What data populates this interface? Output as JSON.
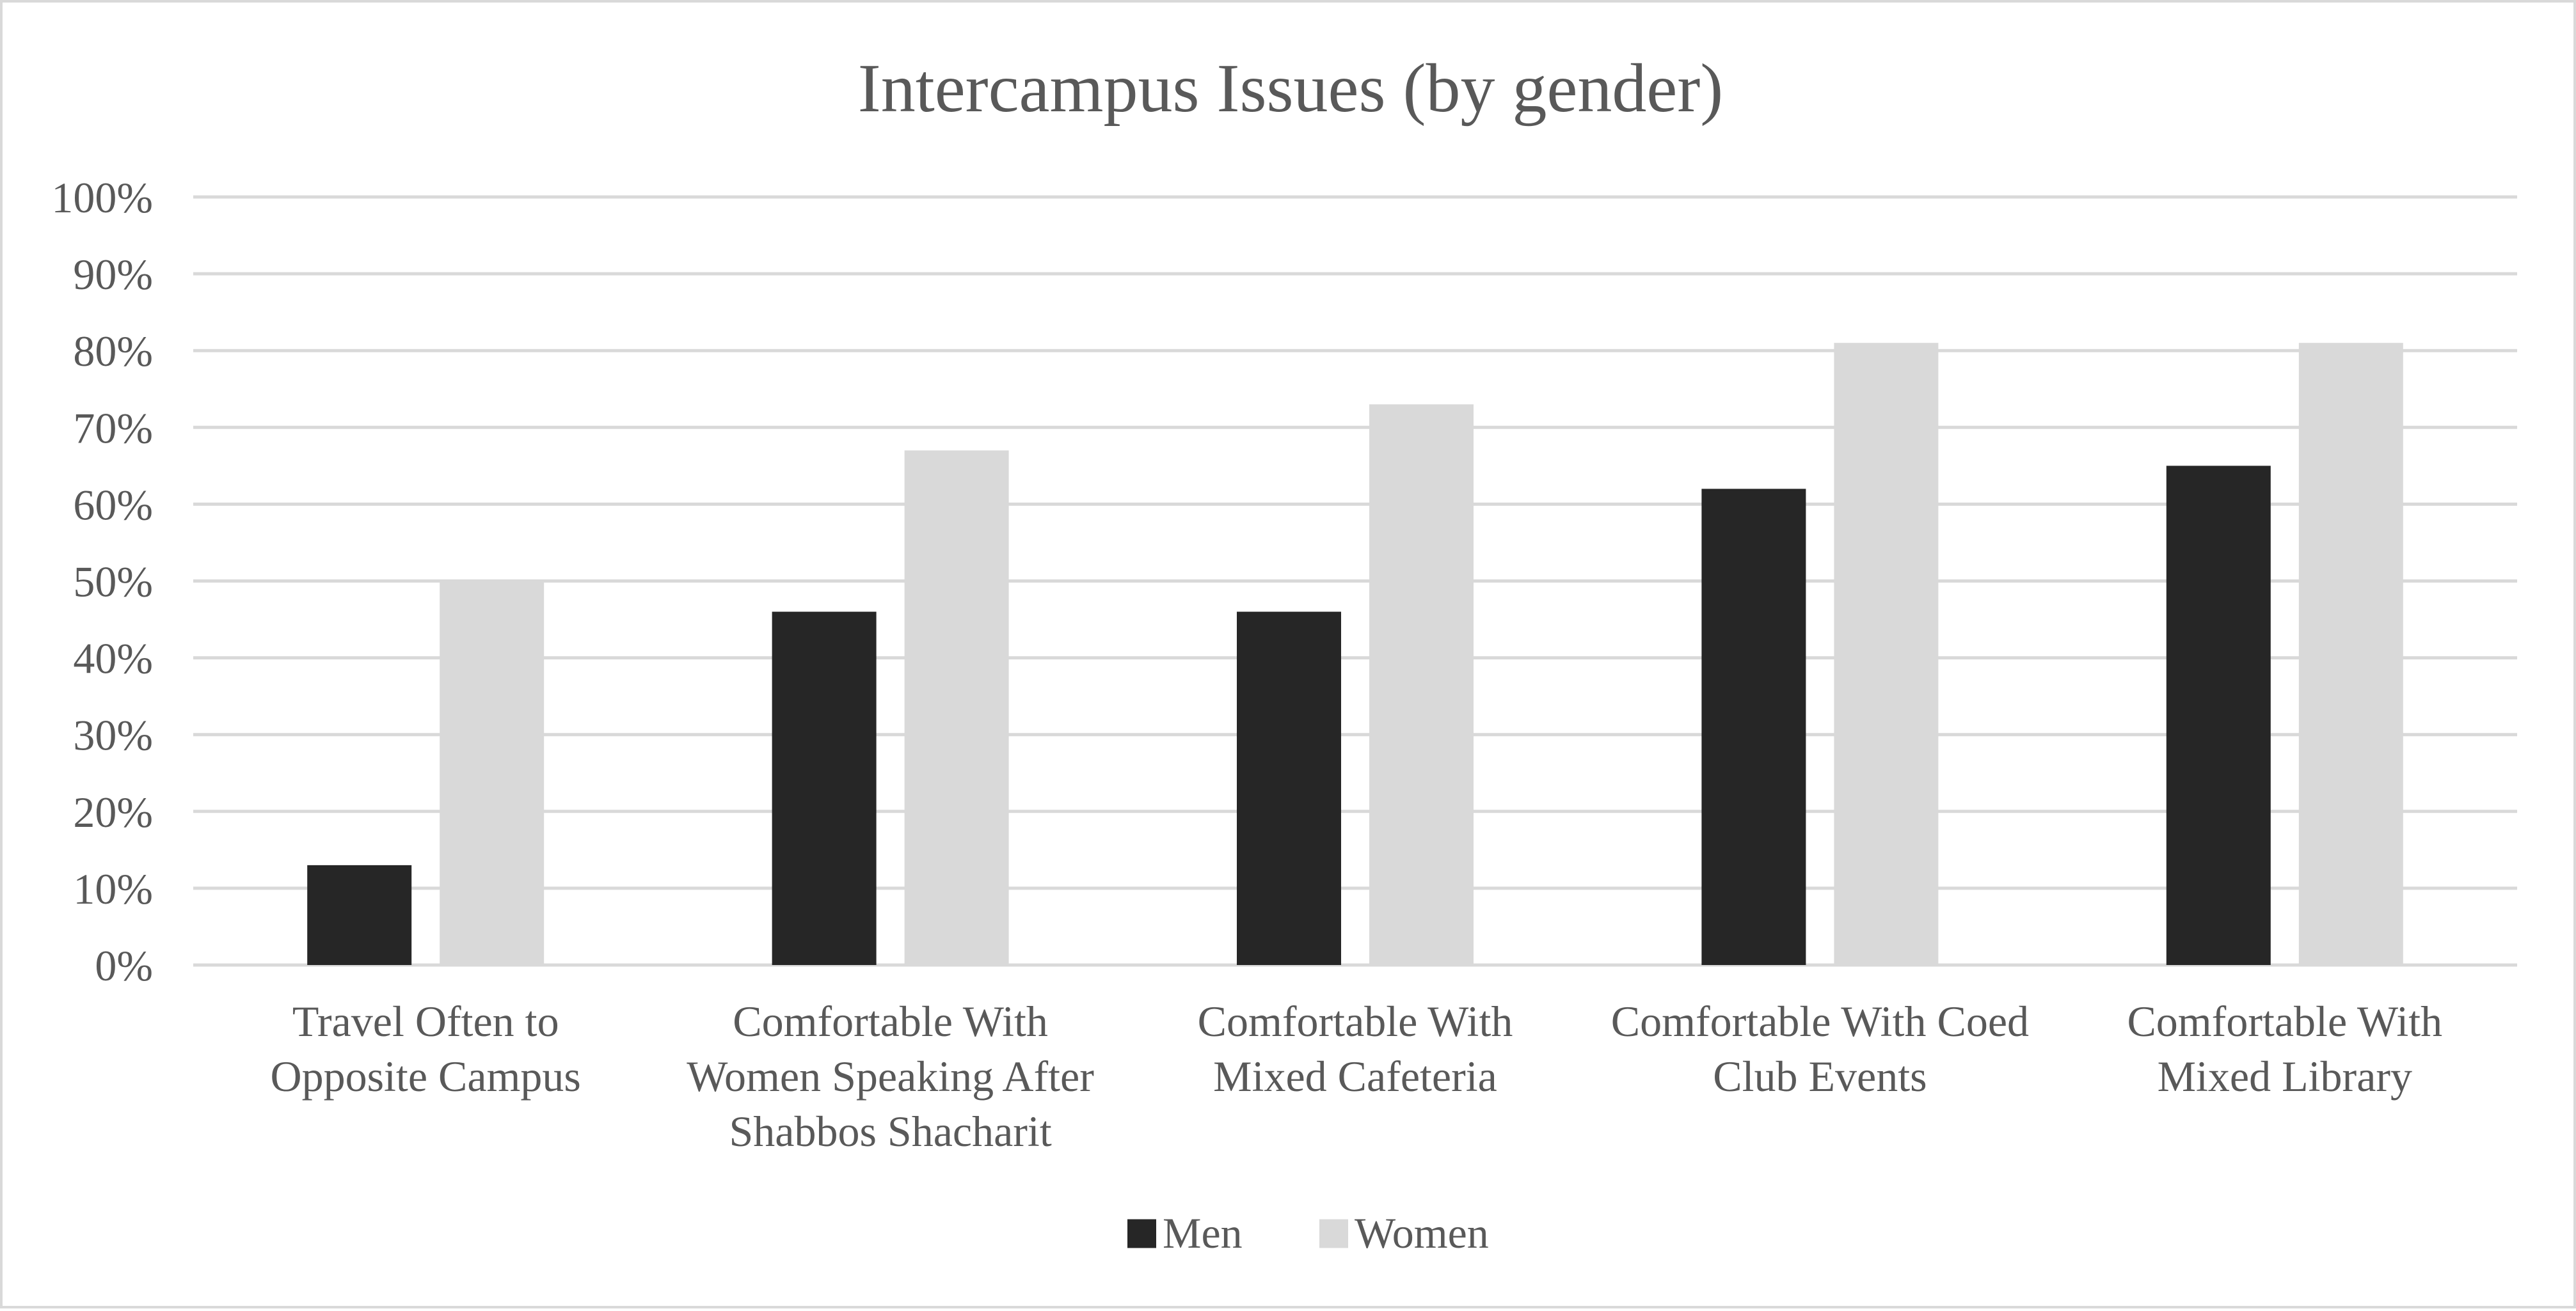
{
  "chart_data": {
    "type": "bar",
    "title": "Intercampus Issues (by gender)",
    "xlabel": "",
    "ylabel": "",
    "ylim": [
      0,
      100
    ],
    "y_ticks": [
      "0%",
      "10%",
      "20%",
      "30%",
      "40%",
      "50%",
      "60%",
      "70%",
      "80%",
      "90%",
      "100%"
    ],
    "categories": [
      [
        "Travel Often to",
        "Opposite Campus"
      ],
      [
        "Comfortable With",
        "Women Speaking After",
        "Shabbos Shacharit"
      ],
      [
        "Comfortable With",
        "Mixed Cafeteria"
      ],
      [
        "Comfortable With Coed",
        "Club Events"
      ],
      [
        "Comfortable With",
        "Mixed Library"
      ]
    ],
    "series": [
      {
        "name": "Men",
        "values": [
          13,
          46,
          46,
          62,
          65
        ],
        "color": "#262626"
      },
      {
        "name": "Women",
        "values": [
          50,
          67,
          73,
          81,
          81
        ],
        "color": "#d9d9d9"
      }
    ],
    "grid": true,
    "legend_position": "bottom",
    "gridline_color": "#d9d9d9",
    "text_color": "#595959"
  }
}
